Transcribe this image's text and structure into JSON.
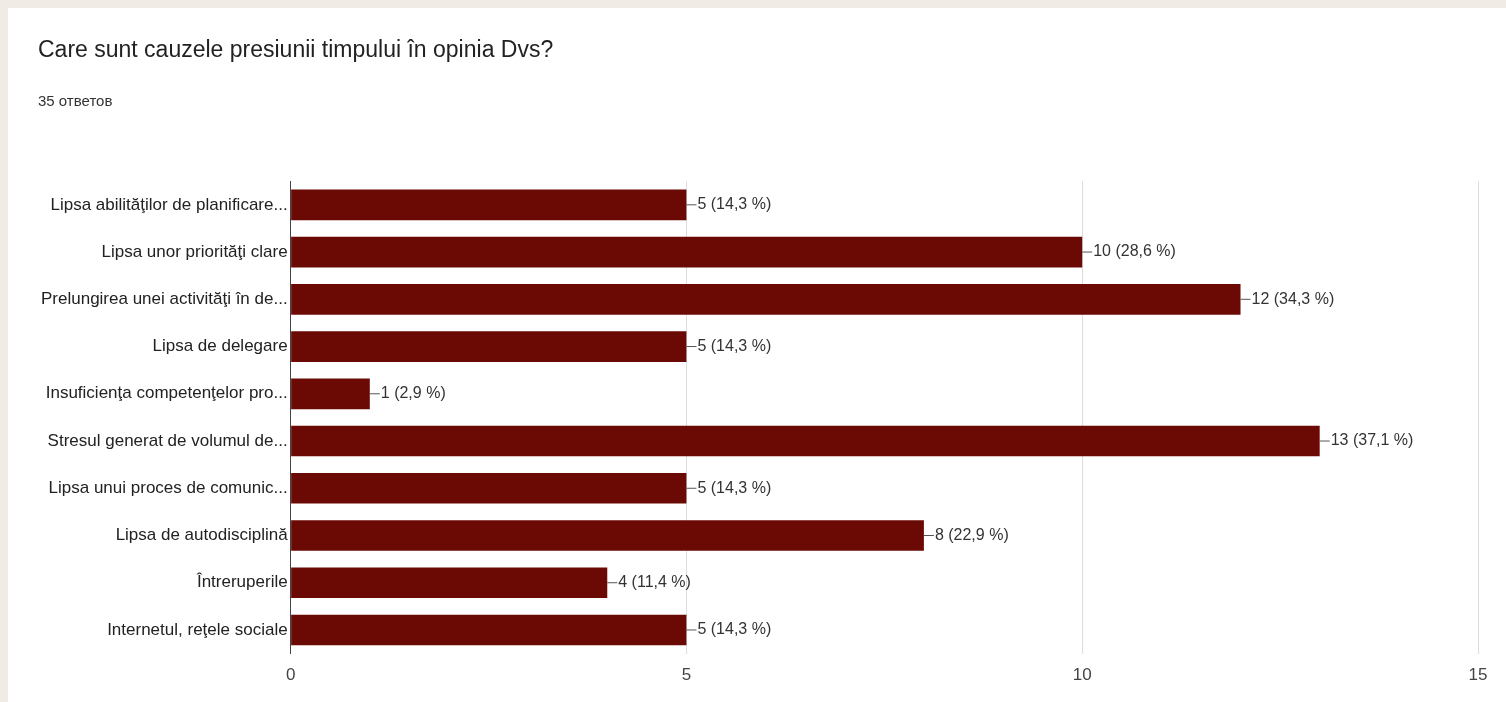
{
  "chart_data": {
    "type": "bar",
    "orientation": "horizontal",
    "title": "Care sunt cauzele presiunii timpului în opinia Dvs?",
    "subtitle": "35 ответов",
    "categories": [
      "Lipsa abilităţilor de planificare...",
      "Lipsa unor priorităţi clare",
      "Prelungirea unei activităţi în de...",
      "Lipsa de delegare",
      "Insuficienţa competenţelor pro...",
      "Stresul generat de volumul de...",
      "Lipsa unui proces de comunic...",
      "Lipsa de autodisciplină",
      "Întreruperile",
      "Internetul, reţele sociale"
    ],
    "values": [
      5,
      10,
      12,
      5,
      1,
      13,
      5,
      8,
      4,
      5
    ],
    "value_labels": [
      "5 (14,3 %)",
      "10 (28,6 %)",
      "12 (34,3 %)",
      "5 (14,3 %)",
      "1 (2,9 %)",
      "13 (37,1 %)",
      "5 (14,3 %)",
      "8 (22,9 %)",
      "4 (11,4 %)",
      "5 (14,3 %)"
    ],
    "color": "#6b0a04",
    "xlim": [
      0,
      15
    ],
    "xticks": [
      0,
      5,
      10,
      15
    ],
    "grid": "x"
  }
}
